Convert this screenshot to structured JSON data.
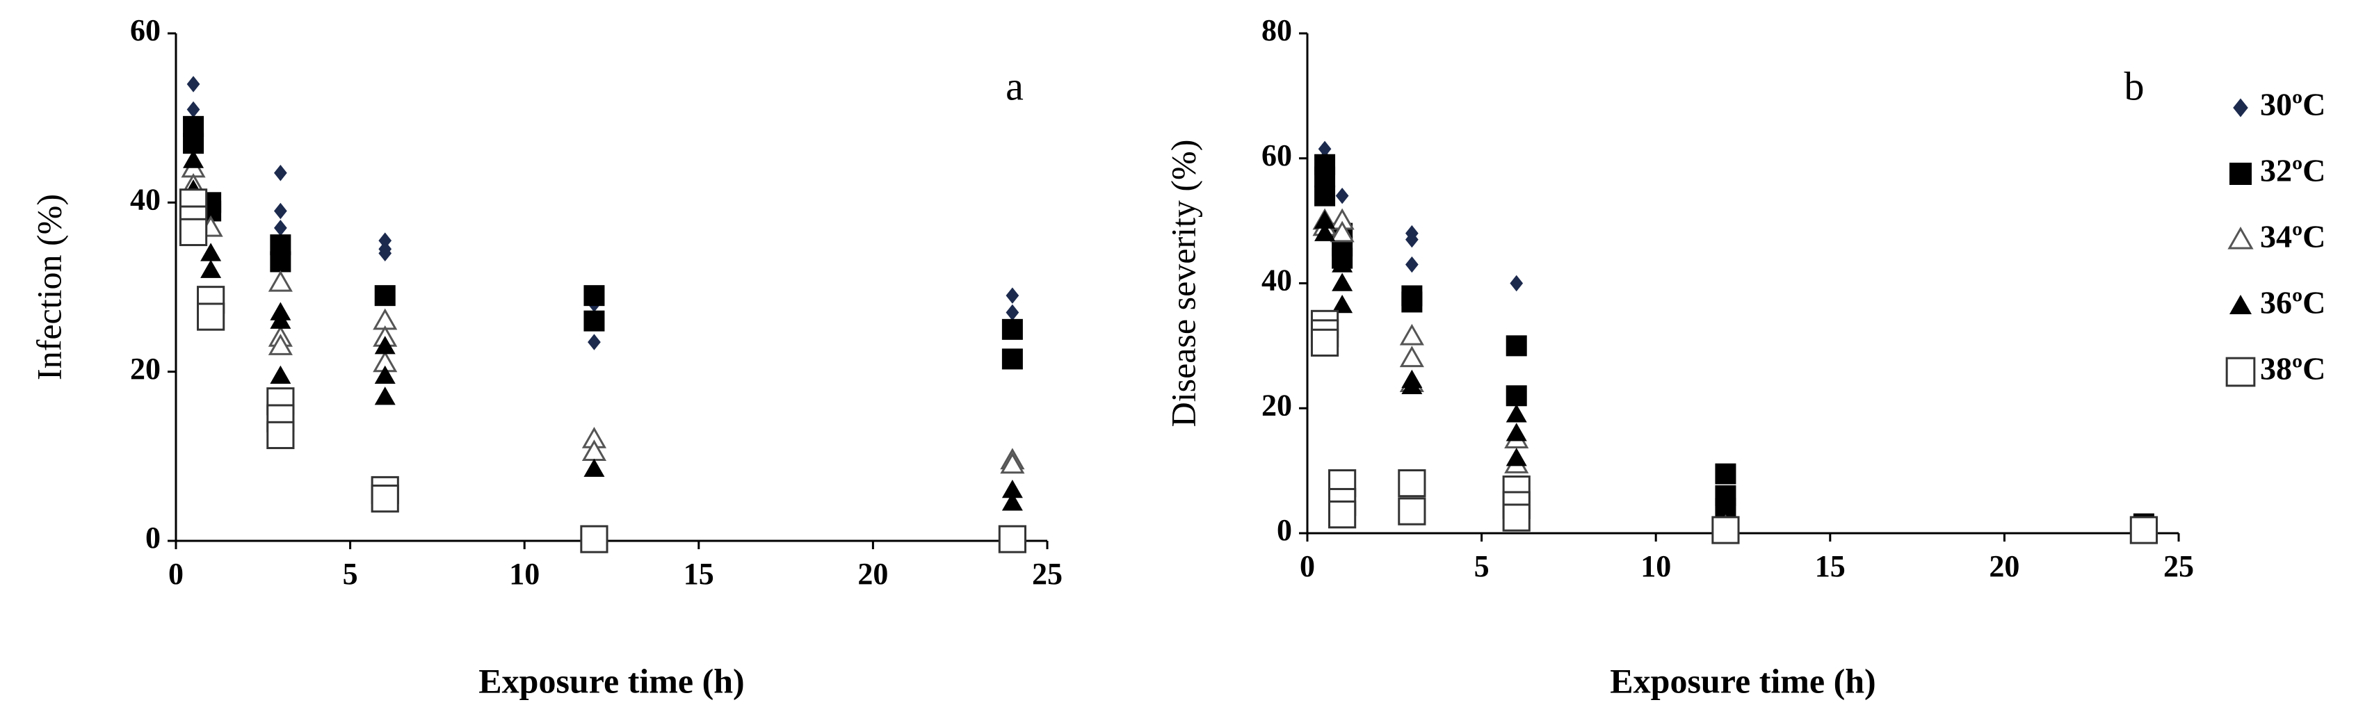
{
  "chart_data": [
    {
      "type": "scatter",
      "annotation": "a",
      "ylabel": "Infection (%)",
      "xlabel": "Exposure time (h)",
      "xlim": [
        0,
        25
      ],
      "xticks": [
        0,
        5,
        10,
        15,
        20,
        25
      ],
      "ylim": [
        0,
        60
      ],
      "yticks": [
        0,
        20,
        40,
        60
      ],
      "series": [
        {
          "marker": "diamond",
          "color": "#1c2a4e",
          "x": [
            0.5,
            0.5,
            0.5,
            1,
            1,
            3,
            3,
            3,
            6,
            6,
            6,
            12,
            12,
            24,
            24,
            24
          ],
          "values": [
            54,
            51,
            49,
            40,
            39,
            43.5,
            39,
            37,
            35.5,
            34.5,
            34,
            28,
            23.5,
            29,
            27,
            25
          ]
        },
        {
          "marker": "square",
          "color": "#000000",
          "x": [
            0.5,
            0.5,
            1,
            1,
            3,
            3,
            6,
            12,
            12,
            24,
            24
          ],
          "values": [
            49,
            47,
            40,
            39,
            35,
            33,
            29,
            29,
            26,
            25,
            21.5
          ]
        },
        {
          "marker": "triangle-open",
          "color": "#555555",
          "x": [
            0.5,
            0.5,
            1,
            3,
            3,
            3,
            6,
            6,
            6,
            12,
            12,
            24,
            24
          ],
          "values": [
            44,
            42,
            37,
            30.5,
            24,
            23,
            26,
            24,
            21,
            12,
            10.5,
            9.5,
            9
          ]
        },
        {
          "marker": "triangle",
          "color": "#000000",
          "x": [
            0.5,
            0.5,
            1,
            1,
            3,
            3,
            3,
            6,
            6,
            6,
            12,
            24,
            24
          ],
          "values": [
            45,
            41.5,
            34,
            32,
            27,
            26,
            19.5,
            23,
            19.5,
            17,
            8.5,
            6,
            4.5
          ]
        },
        {
          "marker": "square-open",
          "color": "#333333",
          "x": [
            0.5,
            0.5,
            0.5,
            1,
            1,
            3,
            3,
            3,
            6,
            6,
            12,
            24
          ],
          "values": [
            40,
            38,
            36.5,
            28.5,
            26.5,
            16.5,
            14.5,
            12.5,
            6,
            5,
            0.2,
            0.2
          ]
        }
      ]
    },
    {
      "type": "scatter",
      "annotation": "b",
      "ylabel": "Disease severity (%)",
      "xlabel": "Exposure time (h)",
      "xlim": [
        0,
        25
      ],
      "xticks": [
        0,
        5,
        10,
        15,
        20,
        25
      ],
      "ylim": [
        0,
        80
      ],
      "yticks": [
        0,
        20,
        40,
        60,
        80
      ],
      "legend": "right",
      "series": [
        {
          "name": "30ºC",
          "marker": "diamond",
          "color": "#1c2a4e",
          "x": [
            0.5,
            0.5,
            1,
            1,
            3,
            3,
            3,
            6
          ],
          "values": [
            61.5,
            60,
            54,
            50,
            48,
            47,
            43,
            40
          ]
        },
        {
          "name": "32ºC",
          "marker": "square",
          "color": "#000000",
          "x": [
            0.5,
            0.5,
            0.5,
            1,
            1,
            1,
            3,
            3,
            6,
            6,
            6,
            12,
            12,
            12,
            24,
            24
          ],
          "values": [
            59,
            57,
            54,
            48,
            46,
            44,
            38,
            37,
            30,
            22,
            7.5,
            9.5,
            6,
            4,
            1.5,
            0.5
          ]
        },
        {
          "name": "34ºC",
          "marker": "triangle-open",
          "color": "#555555",
          "x": [
            0.5,
            0.5,
            1,
            1,
            3,
            3,
            3,
            6,
            6,
            12,
            24
          ],
          "values": [
            50,
            49,
            50,
            48,
            31.5,
            28,
            24,
            15,
            11,
            1,
            0.5
          ]
        },
        {
          "name": "36ºC",
          "marker": "triangle",
          "color": "#000000",
          "x": [
            0.5,
            0.5,
            1,
            1,
            1,
            3,
            3,
            6,
            6,
            6,
            12,
            24
          ],
          "values": [
            50,
            48,
            43,
            40,
            36.5,
            24.5,
            23.5,
            19,
            16,
            12,
            0,
            0
          ]
        },
        {
          "name": "38ºC",
          "marker": "square-open",
          "color": "#333333",
          "x": [
            0.5,
            0.5,
            0.5,
            1,
            1,
            1,
            3,
            3,
            6,
            6,
            6,
            12,
            24
          ],
          "values": [
            33.5,
            32,
            30.5,
            8,
            5,
            3,
            8,
            3.5,
            7,
            4.5,
            2.5,
            0.5,
            0.5
          ]
        }
      ]
    }
  ]
}
